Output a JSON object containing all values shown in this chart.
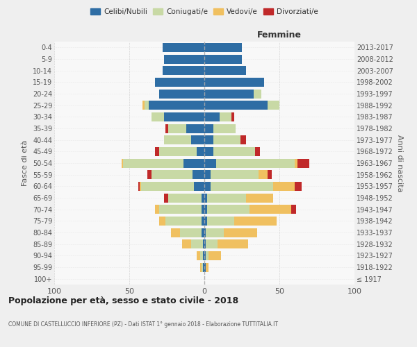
{
  "age_groups": [
    "100+",
    "95-99",
    "90-94",
    "85-89",
    "80-84",
    "75-79",
    "70-74",
    "65-69",
    "60-64",
    "55-59",
    "50-54",
    "45-49",
    "40-44",
    "35-39",
    "30-34",
    "25-29",
    "20-24",
    "15-19",
    "10-14",
    "5-9",
    "0-4"
  ],
  "birth_years": [
    "≤ 1917",
    "1918-1922",
    "1923-1927",
    "1928-1932",
    "1933-1937",
    "1938-1942",
    "1943-1947",
    "1948-1952",
    "1953-1957",
    "1958-1962",
    "1963-1967",
    "1968-1972",
    "1973-1977",
    "1978-1982",
    "1983-1987",
    "1988-1992",
    "1993-1997",
    "1998-2002",
    "2003-2007",
    "2008-2012",
    "2013-2017"
  ],
  "colors": {
    "celibi": "#2e6da4",
    "coniugati": "#c8d9a5",
    "vedovi": "#f0c060",
    "divorziati": "#c0292a"
  },
  "males": {
    "celibi": [
      0,
      1,
      1,
      1,
      2,
      2,
      2,
      2,
      7,
      8,
      14,
      5,
      9,
      12,
      27,
      37,
      30,
      33,
      28,
      27,
      28
    ],
    "coniugati": [
      0,
      1,
      2,
      8,
      14,
      24,
      28,
      22,
      35,
      27,
      40,
      25,
      18,
      12,
      8,
      3,
      0,
      0,
      0,
      0,
      0
    ],
    "vedovi": [
      0,
      1,
      2,
      6,
      6,
      4,
      3,
      0,
      1,
      0,
      1,
      0,
      0,
      0,
      0,
      1,
      0,
      0,
      0,
      0,
      0
    ],
    "divorziati": [
      0,
      0,
      0,
      0,
      0,
      0,
      0,
      3,
      1,
      3,
      0,
      3,
      0,
      2,
      0,
      0,
      0,
      0,
      0,
      0,
      0
    ]
  },
  "females": {
    "nubili": [
      0,
      1,
      1,
      1,
      1,
      2,
      2,
      2,
      4,
      4,
      8,
      6,
      6,
      6,
      10,
      42,
      33,
      40,
      28,
      25,
      25
    ],
    "coniugate": [
      0,
      0,
      2,
      8,
      12,
      18,
      28,
      26,
      42,
      32,
      52,
      28,
      18,
      15,
      8,
      8,
      5,
      0,
      0,
      0,
      0
    ],
    "vedove": [
      0,
      2,
      8,
      20,
      22,
      28,
      28,
      18,
      14,
      6,
      2,
      0,
      0,
      0,
      0,
      0,
      0,
      0,
      0,
      0,
      0
    ],
    "divorziate": [
      0,
      0,
      0,
      0,
      0,
      0,
      3,
      0,
      5,
      3,
      8,
      3,
      4,
      0,
      2,
      0,
      0,
      0,
      0,
      0,
      0
    ]
  },
  "title": "Popolazione per età, sesso e stato civile - 2018",
  "subtitle": "COMUNE DI CASTELLUCCIO INFERIORE (PZ) - Dati ISTAT 1° gennaio 2018 - Elaborazione TUTTITALIA.IT",
  "ylabel_left": "Fasce di età",
  "ylabel_right": "Anni di nascita",
  "xlabel_right": "Femmine",
  "xlim": 100,
  "background_color": "#efefef",
  "plot_background": "#f8f8f8",
  "legend_labels": [
    "Celibi/Nubili",
    "Coniugati/e",
    "Vedovi/e",
    "Divorziati/e"
  ]
}
